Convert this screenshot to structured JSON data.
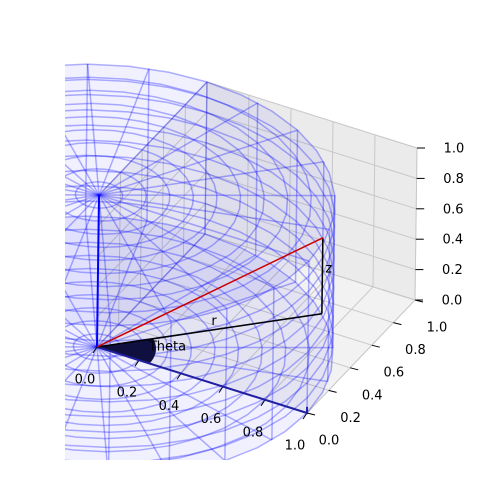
{
  "chart_data": {
    "type": "cylinder3d",
    "annotations": [
      "r",
      "z",
      "Theta"
    ],
    "xlim": [
      0,
      1
    ],
    "ylim": [
      0,
      1
    ],
    "zlim": [
      0,
      1
    ],
    "xticks": [
      {
        "value": 0,
        "label": "0.0"
      },
      {
        "value": 0.2,
        "label": "0.2"
      },
      {
        "value": 0.4,
        "label": "0.4"
      },
      {
        "value": 0.6,
        "label": "0.6"
      },
      {
        "value": 0.8,
        "label": "0.8"
      },
      {
        "value": 1,
        "label": "1.0"
      }
    ],
    "yticks": [
      {
        "value": 0,
        "label": "0.0"
      },
      {
        "value": 0.2,
        "label": "0.2"
      },
      {
        "value": 0.4,
        "label": "0.4"
      },
      {
        "value": 0.6,
        "label": "0.6"
      },
      {
        "value": 0.8,
        "label": "0.8"
      },
      {
        "value": 1,
        "label": "1.0"
      }
    ],
    "zticks": [
      {
        "value": 0,
        "label": "0.0"
      },
      {
        "value": 0.2,
        "label": "0.2"
      },
      {
        "value": 0.4,
        "label": "0.4"
      },
      {
        "value": 0.6,
        "label": "0.6"
      },
      {
        "value": 0.8,
        "label": "0.8"
      },
      {
        "value": 1,
        "label": "1.0"
      }
    ],
    "grid": true,
    "surface_color": "#0000ff",
    "line_color": "#000000",
    "vector_color": "#cc0000"
  }
}
